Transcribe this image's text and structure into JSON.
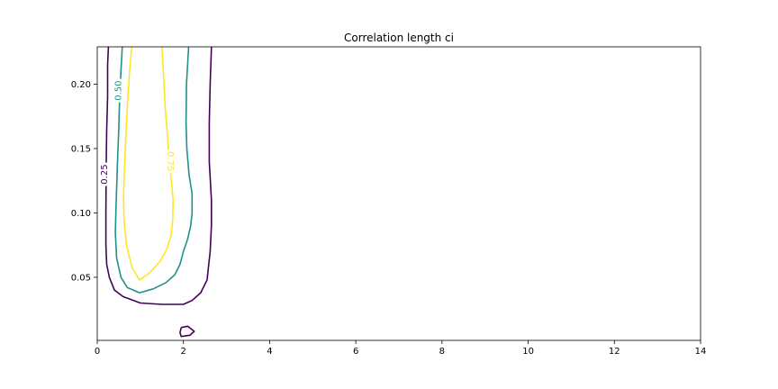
{
  "chart_data": {
    "type": "contour",
    "title": "Correlation length ci",
    "xlabel": "",
    "ylabel": "",
    "xlim": [
      0,
      14
    ],
    "ylim": [
      0.001,
      0.229
    ],
    "xticks": [
      0,
      2,
      4,
      6,
      8,
      10,
      12,
      14
    ],
    "xtick_labels": [
      "0",
      "2",
      "4",
      "6",
      "8",
      "10",
      "12",
      "14"
    ],
    "yticks": [
      0.05,
      0.1,
      0.15,
      0.2
    ],
    "ytick_labels": [
      "0.05",
      "0.10",
      "0.15",
      "0.20"
    ],
    "grid": false,
    "levels": [
      {
        "value": 0.25,
        "label": "0.25",
        "color": "#440154",
        "paths": [
          [
            [
              0.26,
              0.229
            ],
            [
              0.24,
              0.215
            ],
            [
              0.24,
              0.19
            ],
            [
              0.22,
              0.165
            ],
            [
              0.21,
              0.14
            ],
            [
              0.2,
              0.1
            ],
            [
              0.2,
              0.075
            ],
            [
              0.22,
              0.06
            ],
            [
              0.28,
              0.05
            ],
            [
              0.4,
              0.04
            ],
            [
              0.6,
              0.035
            ],
            [
              1.0,
              0.03
            ],
            [
              1.5,
              0.029
            ],
            [
              2.0,
              0.029
            ],
            [
              2.2,
              0.032
            ],
            [
              2.4,
              0.038
            ],
            [
              2.55,
              0.048
            ],
            [
              2.58,
              0.058
            ],
            [
              2.62,
              0.07
            ],
            [
              2.65,
              0.09
            ],
            [
              2.65,
              0.11
            ],
            [
              2.6,
              0.14
            ],
            [
              2.6,
              0.17
            ],
            [
              2.62,
              0.2
            ],
            [
              2.65,
              0.229
            ]
          ],
          [
            [
              1.95,
              0.011
            ],
            [
              2.1,
              0.012
            ],
            [
              2.25,
              0.008
            ],
            [
              2.15,
              0.005
            ],
            [
              1.95,
              0.004
            ],
            [
              1.92,
              0.007
            ],
            [
              1.95,
              0.011
            ]
          ]
        ],
        "label_at": [
          0.18,
          0.13
        ]
      },
      {
        "value": 0.5,
        "label": "0.50",
        "color": "#21918c",
        "paths": [
          [
            [
              0.58,
              0.229
            ],
            [
              0.55,
              0.21
            ],
            [
              0.52,
              0.19
            ],
            [
              0.5,
              0.165
            ],
            [
              0.47,
              0.14
            ],
            [
              0.44,
              0.11
            ],
            [
              0.42,
              0.085
            ],
            [
              0.45,
              0.065
            ],
            [
              0.55,
              0.05
            ],
            [
              0.7,
              0.042
            ],
            [
              0.98,
              0.038
            ],
            [
              1.3,
              0.041
            ],
            [
              1.6,
              0.046
            ],
            [
              1.8,
              0.052
            ],
            [
              1.92,
              0.06
            ],
            [
              2.0,
              0.07
            ],
            [
              2.1,
              0.08
            ],
            [
              2.17,
              0.09
            ],
            [
              2.2,
              0.1
            ],
            [
              2.2,
              0.115
            ],
            [
              2.13,
              0.13
            ],
            [
              2.08,
              0.15
            ],
            [
              2.06,
              0.17
            ],
            [
              2.07,
              0.2
            ],
            [
              2.12,
              0.229
            ]
          ]
        ],
        "label_at": [
          0.5,
          0.195
        ]
      },
      {
        "value": 0.75,
        "label": "0.75",
        "color": "#fde725",
        "paths": [
          [
            [
              0.8,
              0.229
            ],
            [
              0.75,
              0.21
            ],
            [
              0.71,
              0.19
            ],
            [
              0.67,
              0.165
            ],
            [
              0.64,
              0.14
            ],
            [
              0.61,
              0.115
            ],
            [
              0.62,
              0.095
            ],
            [
              0.68,
              0.075
            ],
            [
              0.8,
              0.058
            ],
            [
              0.98,
              0.048
            ],
            [
              1.2,
              0.053
            ],
            [
              1.45,
              0.062
            ],
            [
              1.62,
              0.072
            ],
            [
              1.72,
              0.084
            ],
            [
              1.75,
              0.095
            ],
            [
              1.76,
              0.11
            ],
            [
              1.72,
              0.125
            ],
            [
              1.67,
              0.14
            ],
            [
              1.63,
              0.16
            ],
            [
              1.58,
              0.18
            ],
            [
              1.55,
              0.2
            ],
            [
              1.5,
              0.229
            ]
          ]
        ],
        "label_at": [
          1.68,
          0.14
        ]
      }
    ]
  }
}
